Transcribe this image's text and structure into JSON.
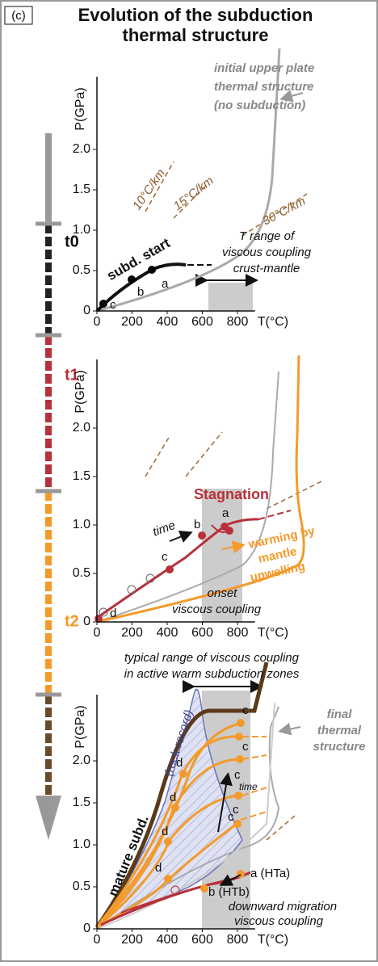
{
  "label": "(c)",
  "title": [
    "Evolution of the subduction",
    "thermal structure"
  ],
  "timeline": [
    "t0",
    "t1",
    "t2"
  ],
  "panels": [
    {
      "y_axis_label": "P(GPa)",
      "x_axis_label": "T(°C)",
      "yticks": [
        "0",
        "0.5",
        "1.0",
        "1.5",
        "2.0"
      ],
      "xticks": [
        "0",
        "200",
        "400",
        "600",
        "800"
      ],
      "annotations": [
        "initial upper plate",
        "thermal structure",
        "(no subduction)",
        "10°C/km",
        "15°C/km",
        "30°C/km",
        "subd. start",
        "a",
        "b",
        "c",
        "T range of",
        "viscous coupling",
        "crust-mantle"
      ]
    },
    {
      "y_axis_label": "P(GPa)",
      "x_axis_label": "T(°C)",
      "yticks": [
        "0",
        "0.5",
        "1.0",
        "1.5",
        "2.0"
      ],
      "xticks": [
        "0",
        "200",
        "400",
        "600",
        "800"
      ],
      "annotations": [
        "Stagnation",
        "time",
        "a",
        "b",
        "c",
        "d",
        "warming by",
        "mantle",
        "upwelling",
        "onset",
        "viscous coupling"
      ]
    },
    {
      "y_axis_label": "P(GPa)",
      "x_axis_label": "T(°C)",
      "yticks": [
        "0",
        "0.5",
        "1.0",
        "1.5",
        "2.0"
      ],
      "xticks": [
        "0",
        "200",
        "400",
        "600",
        "800"
      ],
      "annotations": [
        "typical range of viscous coupling",
        "in active warm subduction zones",
        "final",
        "thermal",
        "structure",
        "(rock record)",
        "mature subd.",
        "time",
        "c",
        "c",
        "c",
        "c",
        "c",
        "d",
        "d",
        "d",
        "d",
        "a (HTa)",
        "b (HTb)",
        "downward migration",
        "viscous coupling"
      ]
    }
  ]
}
